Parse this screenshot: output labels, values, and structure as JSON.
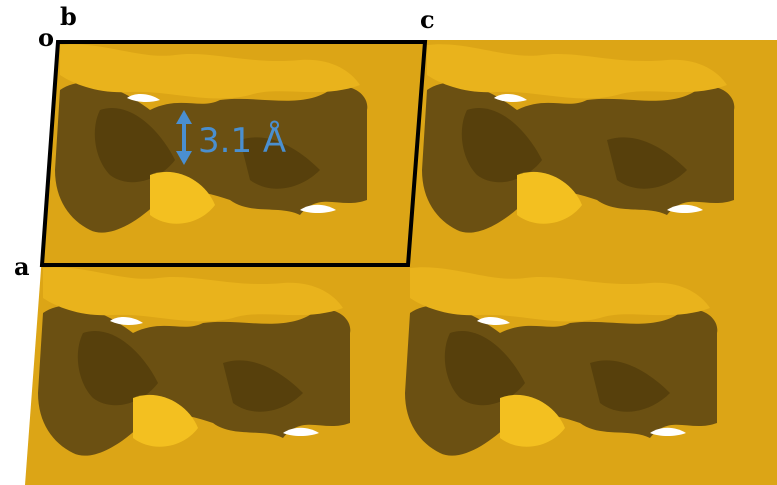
{
  "labels": {
    "origin": "o",
    "b": "b",
    "c": "c",
    "a": "a"
  },
  "measurement": "3.1 Å"
}
